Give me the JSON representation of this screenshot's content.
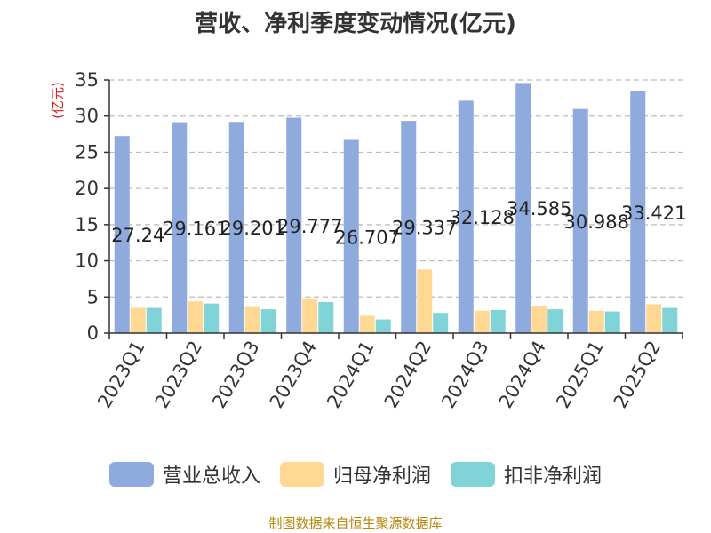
{
  "title": "营收、净利季度变动情况(亿元)",
  "source": "制图数据来自恒生聚源数据库",
  "colors": {
    "axis": "#333333",
    "grid": "#bbbbbb",
    "ylabel": "#e02020",
    "label": "#222222"
  },
  "chart_data": {
    "type": "bar",
    "title": "营收、净利季度变动情况(亿元)",
    "ylabel": "(亿元)",
    "xlabel": "",
    "ylim": [
      0,
      35
    ],
    "yticks": [
      0,
      5,
      10,
      15,
      20,
      25,
      30,
      35
    ],
    "grid": "horizontal-dashed",
    "legend_position": "bottom",
    "categories": [
      "2023Q1",
      "2023Q2",
      "2023Q3",
      "2023Q4",
      "2024Q1",
      "2024Q2",
      "2024Q3",
      "2024Q4",
      "2025Q1",
      "2025Q2"
    ],
    "series": [
      {
        "name": "营业总收入",
        "color": "#8faadc",
        "values": [
          27.24,
          29.161,
          29.201,
          29.777,
          26.707,
          29.337,
          32.128,
          34.585,
          30.988,
          33.421
        ],
        "labels": [
          "27.24",
          "29.161",
          "29.201",
          "29.777",
          "26.707",
          "29.337",
          "32.128",
          "34.585",
          "30.988",
          "33.421"
        ]
      },
      {
        "name": "归母净利润",
        "color": "#ffd894",
        "values": [
          3.5,
          4.4,
          3.6,
          4.7,
          2.4,
          8.8,
          3.1,
          3.8,
          3.1,
          4.0
        ]
      },
      {
        "name": "扣非净利润",
        "color": "#80d4d8",
        "values": [
          3.5,
          4.1,
          3.3,
          4.3,
          1.9,
          2.8,
          3.2,
          3.3,
          3.0,
          3.5
        ]
      }
    ]
  }
}
